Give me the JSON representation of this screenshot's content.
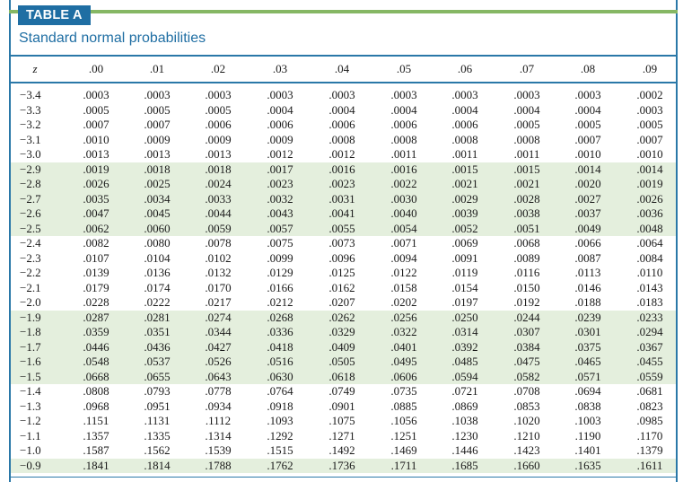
{
  "header": {
    "tab_label": "TABLE A",
    "subtitle": "Standard normal probabilities"
  },
  "table": {
    "columns": [
      "z",
      ".00",
      ".01",
      ".02",
      ".03",
      ".04",
      ".05",
      ".06",
      ".07",
      ".08",
      ".09"
    ],
    "row_groups": [
      {
        "shaded": false,
        "rows": [
          {
            "z": "−3.4",
            "values": [
              ".0003",
              ".0003",
              ".0003",
              ".0003",
              ".0003",
              ".0003",
              ".0003",
              ".0003",
              ".0003",
              ".0002"
            ]
          },
          {
            "z": "−3.3",
            "values": [
              ".0005",
              ".0005",
              ".0005",
              ".0004",
              ".0004",
              ".0004",
              ".0004",
              ".0004",
              ".0004",
              ".0003"
            ]
          },
          {
            "z": "−3.2",
            "values": [
              ".0007",
              ".0007",
              ".0006",
              ".0006",
              ".0006",
              ".0006",
              ".0006",
              ".0005",
              ".0005",
              ".0005"
            ]
          },
          {
            "z": "−3.1",
            "values": [
              ".0010",
              ".0009",
              ".0009",
              ".0009",
              ".0008",
              ".0008",
              ".0008",
              ".0008",
              ".0007",
              ".0007"
            ]
          },
          {
            "z": "−3.0",
            "values": [
              ".0013",
              ".0013",
              ".0013",
              ".0012",
              ".0012",
              ".0011",
              ".0011",
              ".0011",
              ".0010",
              ".0010"
            ]
          }
        ]
      },
      {
        "shaded": true,
        "rows": [
          {
            "z": "−2.9",
            "values": [
              ".0019",
              ".0018",
              ".0018",
              ".0017",
              ".0016",
              ".0016",
              ".0015",
              ".0015",
              ".0014",
              ".0014"
            ]
          },
          {
            "z": "−2.8",
            "values": [
              ".0026",
              ".0025",
              ".0024",
              ".0023",
              ".0023",
              ".0022",
              ".0021",
              ".0021",
              ".0020",
              ".0019"
            ]
          },
          {
            "z": "−2.7",
            "values": [
              ".0035",
              ".0034",
              ".0033",
              ".0032",
              ".0031",
              ".0030",
              ".0029",
              ".0028",
              ".0027",
              ".0026"
            ]
          },
          {
            "z": "−2.6",
            "values": [
              ".0047",
              ".0045",
              ".0044",
              ".0043",
              ".0041",
              ".0040",
              ".0039",
              ".0038",
              ".0037",
              ".0036"
            ]
          },
          {
            "z": "−2.5",
            "values": [
              ".0062",
              ".0060",
              ".0059",
              ".0057",
              ".0055",
              ".0054",
              ".0052",
              ".0051",
              ".0049",
              ".0048"
            ]
          }
        ]
      },
      {
        "shaded": false,
        "rows": [
          {
            "z": "−2.4",
            "values": [
              ".0082",
              ".0080",
              ".0078",
              ".0075",
              ".0073",
              ".0071",
              ".0069",
              ".0068",
              ".0066",
              ".0064"
            ]
          },
          {
            "z": "−2.3",
            "values": [
              ".0107",
              ".0104",
              ".0102",
              ".0099",
              ".0096",
              ".0094",
              ".0091",
              ".0089",
              ".0087",
              ".0084"
            ]
          },
          {
            "z": "−2.2",
            "values": [
              ".0139",
              ".0136",
              ".0132",
              ".0129",
              ".0125",
              ".0122",
              ".0119",
              ".0116",
              ".0113",
              ".0110"
            ]
          },
          {
            "z": "−2.1",
            "values": [
              ".0179",
              ".0174",
              ".0170",
              ".0166",
              ".0162",
              ".0158",
              ".0154",
              ".0150",
              ".0146",
              ".0143"
            ]
          },
          {
            "z": "−2.0",
            "values": [
              ".0228",
              ".0222",
              ".0217",
              ".0212",
              ".0207",
              ".0202",
              ".0197",
              ".0192",
              ".0188",
              ".0183"
            ]
          }
        ]
      },
      {
        "shaded": true,
        "rows": [
          {
            "z": "−1.9",
            "values": [
              ".0287",
              ".0281",
              ".0274",
              ".0268",
              ".0262",
              ".0256",
              ".0250",
              ".0244",
              ".0239",
              ".0233"
            ]
          },
          {
            "z": "−1.8",
            "values": [
              ".0359",
              ".0351",
              ".0344",
              ".0336",
              ".0329",
              ".0322",
              ".0314",
              ".0307",
              ".0301",
              ".0294"
            ]
          },
          {
            "z": "−1.7",
            "values": [
              ".0446",
              ".0436",
              ".0427",
              ".0418",
              ".0409",
              ".0401",
              ".0392",
              ".0384",
              ".0375",
              ".0367"
            ]
          },
          {
            "z": "−1.6",
            "values": [
              ".0548",
              ".0537",
              ".0526",
              ".0516",
              ".0505",
              ".0495",
              ".0485",
              ".0475",
              ".0465",
              ".0455"
            ]
          },
          {
            "z": "−1.5",
            "values": [
              ".0668",
              ".0655",
              ".0643",
              ".0630",
              ".0618",
              ".0606",
              ".0594",
              ".0582",
              ".0571",
              ".0559"
            ]
          }
        ]
      },
      {
        "shaded": false,
        "rows": [
          {
            "z": "−1.4",
            "values": [
              ".0808",
              ".0793",
              ".0778",
              ".0764",
              ".0749",
              ".0735",
              ".0721",
              ".0708",
              ".0694",
              ".0681"
            ]
          },
          {
            "z": "−1.3",
            "values": [
              ".0968",
              ".0951",
              ".0934",
              ".0918",
              ".0901",
              ".0885",
              ".0869",
              ".0853",
              ".0838",
              ".0823"
            ]
          },
          {
            "z": "−1.2",
            "values": [
              ".1151",
              ".1131",
              ".1112",
              ".1093",
              ".1075",
              ".1056",
              ".1038",
              ".1020",
              ".1003",
              ".0985"
            ]
          },
          {
            "z": "−1.1",
            "values": [
              ".1357",
              ".1335",
              ".1314",
              ".1292",
              ".1271",
              ".1251",
              ".1230",
              ".1210",
              ".1190",
              ".1170"
            ]
          },
          {
            "z": "−1.0",
            "values": [
              ".1587",
              ".1562",
              ".1539",
              ".1515",
              ".1492",
              ".1469",
              ".1446",
              ".1423",
              ".1401",
              ".1379"
            ]
          }
        ]
      },
      {
        "shaded": true,
        "rows": [
          {
            "z": "−0.9",
            "values": [
              ".1841",
              ".1814",
              ".1788",
              ".1762",
              ".1736",
              ".1711",
              ".1685",
              ".1660",
              ".1635",
              ".1611"
            ]
          }
        ]
      }
    ]
  },
  "colors": {
    "accent_blue": "#1f6ea3",
    "accent_green": "#86b764",
    "band_shade": "#e4efdd"
  }
}
